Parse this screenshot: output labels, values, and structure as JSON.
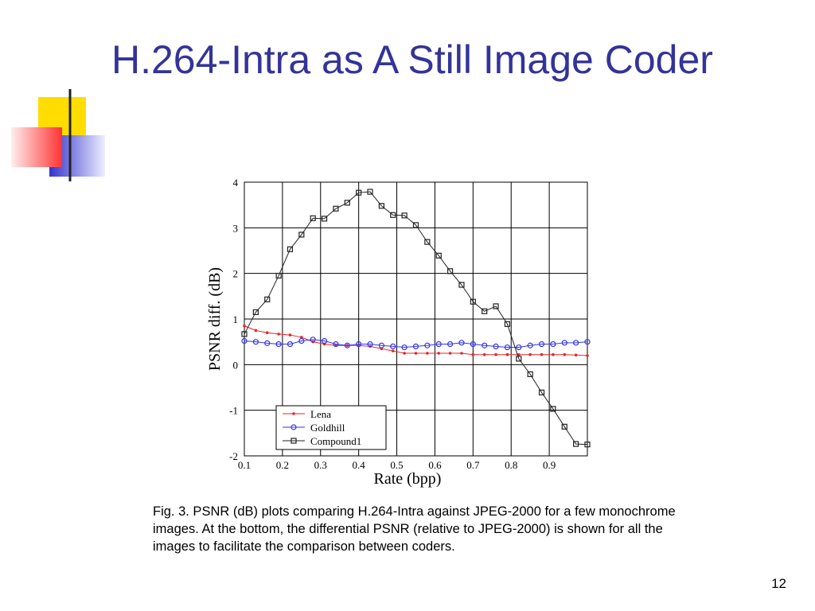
{
  "slide": {
    "title": "H.264-Intra as A Still Image Coder",
    "caption": "Fig. 3. PSNR (dB) plots comparing H.264-Intra against JPEG-2000 for a few monochrome images. At the bottom, the differential PSNR (relative to JPEG-2000) is shown for all the images to facilitate the comparison between coders.",
    "page_number": "12"
  },
  "chart_data": {
    "type": "line",
    "x_label": "Rate (bpp)",
    "y_label": "PSNR diff. (dB)",
    "x": [
      0.1,
      0.13,
      0.16,
      0.19,
      0.22,
      0.25,
      0.28,
      0.31,
      0.34,
      0.37,
      0.4,
      0.43,
      0.46,
      0.49,
      0.52,
      0.55,
      0.58,
      0.61,
      0.64,
      0.67,
      0.7,
      0.73,
      0.76,
      0.79,
      0.82,
      0.85,
      0.88,
      0.91,
      0.94,
      0.97,
      1.0
    ],
    "series": [
      {
        "name": "Lena",
        "color": "#e8262b",
        "marker": "dot",
        "values": [
          0.85,
          0.75,
          0.7,
          0.67,
          0.65,
          0.6,
          0.5,
          0.45,
          0.42,
          0.42,
          0.42,
          0.4,
          0.35,
          0.3,
          0.25,
          0.25,
          0.25,
          0.25,
          0.25,
          0.25,
          0.22,
          0.22,
          0.22,
          0.22,
          0.22,
          0.22,
          0.22,
          0.22,
          0.22,
          0.21,
          0.2
        ]
      },
      {
        "name": "Goldhill",
        "color": "#3333ee",
        "marker": "circle",
        "values": [
          0.52,
          0.5,
          0.47,
          0.45,
          0.45,
          0.52,
          0.55,
          0.52,
          0.45,
          0.42,
          0.45,
          0.45,
          0.42,
          0.4,
          0.38,
          0.4,
          0.42,
          0.45,
          0.45,
          0.48,
          0.45,
          0.42,
          0.4,
          0.38,
          0.38,
          0.42,
          0.45,
          0.45,
          0.48,
          0.48,
          0.5
        ]
      },
      {
        "name": "Compound1",
        "color": "#222222",
        "marker": "square",
        "values": [
          0.67,
          1.15,
          1.43,
          1.95,
          2.53,
          2.85,
          3.21,
          3.2,
          3.42,
          3.55,
          3.77,
          3.79,
          3.48,
          3.28,
          3.27,
          3.06,
          2.69,
          2.39,
          2.05,
          1.75,
          1.38,
          1.17,
          1.28,
          0.89,
          0.13,
          -0.21,
          -0.61,
          -0.97,
          -1.36,
          -1.74,
          -1.75
        ]
      }
    ],
    "xlim": [
      0.1,
      1.0
    ],
    "xticks": [
      0.1,
      0.2,
      0.3,
      0.4,
      0.5,
      0.6,
      0.7,
      0.8,
      0.9
    ],
    "ylim": [
      -2,
      4
    ],
    "yticks": [
      -2,
      -1,
      0,
      1,
      2,
      3,
      4
    ],
    "grid": true,
    "legend": "lower left"
  }
}
